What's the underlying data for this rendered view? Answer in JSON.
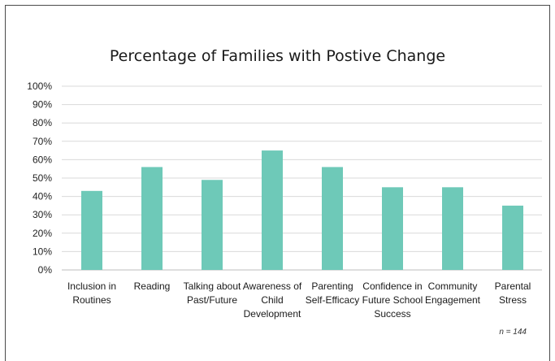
{
  "chart_data": {
    "type": "bar",
    "title": "Percentage of Families with Postive Change",
    "xlabel": "",
    "ylabel": "",
    "ylim": [
      0,
      100
    ],
    "yticks": [
      "0%",
      "10%",
      "20%",
      "30%",
      "40%",
      "50%",
      "60%",
      "70%",
      "80%",
      "90%",
      "100%"
    ],
    "categories": [
      [
        "Inclusion in",
        "Routines"
      ],
      [
        "Reading"
      ],
      [
        "Talking about",
        "Past/Future"
      ],
      [
        "Awareness of",
        "Child",
        "Development"
      ],
      [
        "Parenting",
        "Self-Efficacy"
      ],
      [
        "Confidence in",
        "Future School",
        "Success"
      ],
      [
        "Community",
        "Engagement"
      ],
      [
        "Parental",
        "Stress"
      ]
    ],
    "values": [
      43,
      56,
      49,
      65,
      56,
      45,
      45,
      35
    ],
    "bar_color": "#6ec9b8",
    "grid": true,
    "note": "n = 144"
  }
}
